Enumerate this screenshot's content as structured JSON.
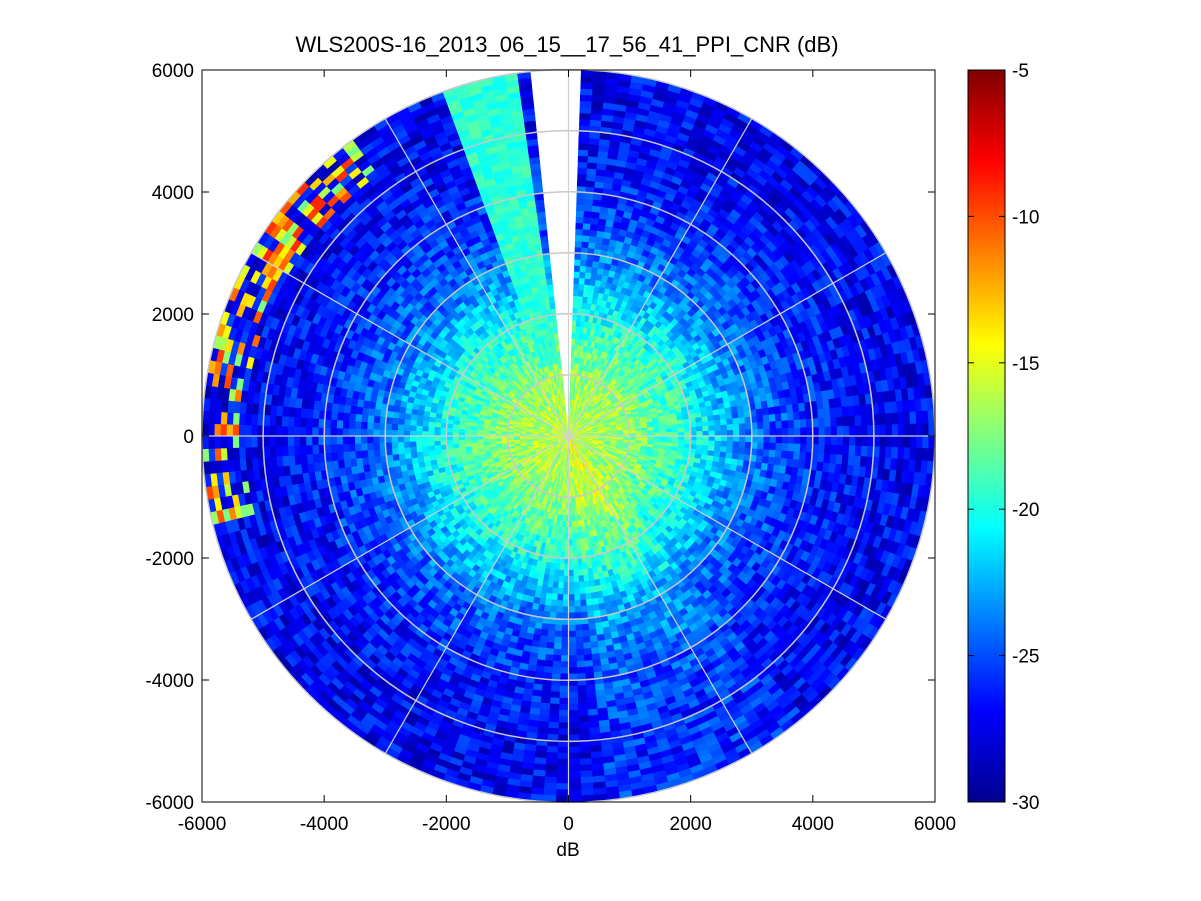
{
  "chart_data": {
    "type": "heatmap",
    "subtype": "polar-ppi",
    "title": "WLS200S-16_2013_06_15__17_56_41_PPI_CNR (dB)",
    "xlabel": "dB",
    "ylabel": "",
    "xlim": [
      -6000,
      6000
    ],
    "ylim": [
      -6000,
      6000
    ],
    "xticks": [
      "-6000",
      "-4000",
      "-2000",
      "0",
      "2000",
      "4000",
      "6000"
    ],
    "yticks": [
      "6000",
      "4000",
      "2000",
      "0",
      "-2000",
      "-4000",
      "-6000"
    ],
    "max_range": 6000,
    "range_rings": [
      1000,
      2000,
      3000,
      4000,
      5000,
      6000
    ],
    "radial_spokes_deg": [
      0,
      30,
      60,
      90,
      120,
      150,
      180,
      210,
      240,
      270,
      300,
      330
    ],
    "colorbar": {
      "colormap": "jet",
      "range": [
        -30,
        -5
      ],
      "tick_labels": [
        "-5",
        "-10",
        "-15",
        "-20",
        "-25",
        "-30"
      ]
    },
    "cnr_profile_by_range": [
      {
        "range_m": 0,
        "cnr_db": -16
      },
      {
        "range_m": 1000,
        "cnr_db": -17
      },
      {
        "range_m": 2000,
        "cnr_db": -20
      },
      {
        "range_m": 3000,
        "cnr_db": -24
      },
      {
        "range_m": 4000,
        "cnr_db": -26
      },
      {
        "range_m": 5000,
        "cnr_db": -27
      },
      {
        "range_m": 6000,
        "cnr_db": -27
      }
    ],
    "gap_sector_deg": [
      -7,
      3
    ],
    "bright_sector_deg": [
      -20,
      -7
    ],
    "high_cnr_edge_sector_deg": [
      -105,
      -35
    ]
  }
}
